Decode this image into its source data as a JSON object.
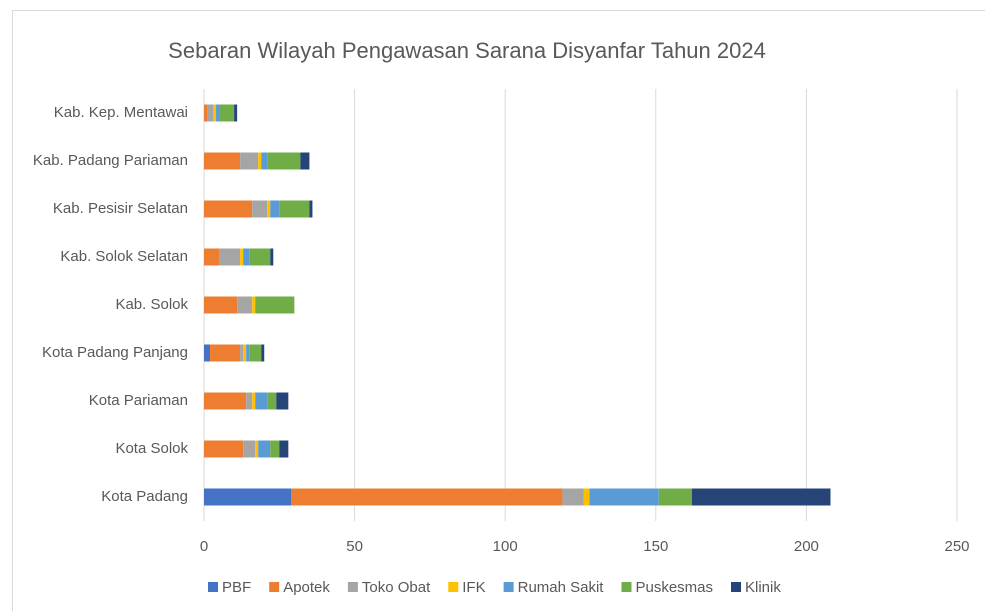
{
  "chart_data": {
    "type": "stacked-barh",
    "title": "Sebaran Wilayah Pengawasan Sarana Disyanfar Tahun 2024",
    "categories": [
      "Kab. Kep. Mentawai",
      "Kab. Padang Pariaman",
      "Kab. Pesisir Selatan",
      "Kab. Solok Selatan",
      "Kab. Solok",
      "Kota Padang Panjang",
      "Kota Pariaman",
      "Kota Solok",
      "Kota Padang"
    ],
    "series": [
      {
        "name": "PBF",
        "color": "#4472c4",
        "values": [
          0,
          0,
          0,
          0,
          0,
          2,
          0,
          0,
          29
        ]
      },
      {
        "name": "Apotek",
        "color": "#ed7d31",
        "values": [
          1,
          12,
          16,
          5,
          11,
          10,
          14,
          13,
          90
        ]
      },
      {
        "name": "Toko Obat",
        "color": "#a5a5a5",
        "values": [
          2,
          6,
          5,
          7,
          5,
          1,
          2,
          4,
          7
        ]
      },
      {
        "name": "IFK",
        "color": "#ffc000",
        "values": [
          1,
          1,
          1,
          1,
          1,
          1,
          1,
          1,
          2
        ]
      },
      {
        "name": "Rumah Sakit",
        "color": "#5b9bd5",
        "values": [
          1,
          2,
          3,
          2,
          0,
          1,
          4,
          4,
          23
        ]
      },
      {
        "name": "Puskesmas",
        "color": "#70ad47",
        "values": [
          5,
          11,
          10,
          7,
          13,
          4,
          3,
          3,
          11
        ]
      },
      {
        "name": "Klinik",
        "color": "#264478",
        "values": [
          1,
          3,
          1,
          1,
          0,
          1,
          4,
          3,
          46
        ]
      }
    ],
    "xlim": [
      0,
      250
    ],
    "xticks": [
      0,
      50,
      100,
      150,
      200,
      250
    ],
    "grid": true,
    "legend": "bottom"
  }
}
